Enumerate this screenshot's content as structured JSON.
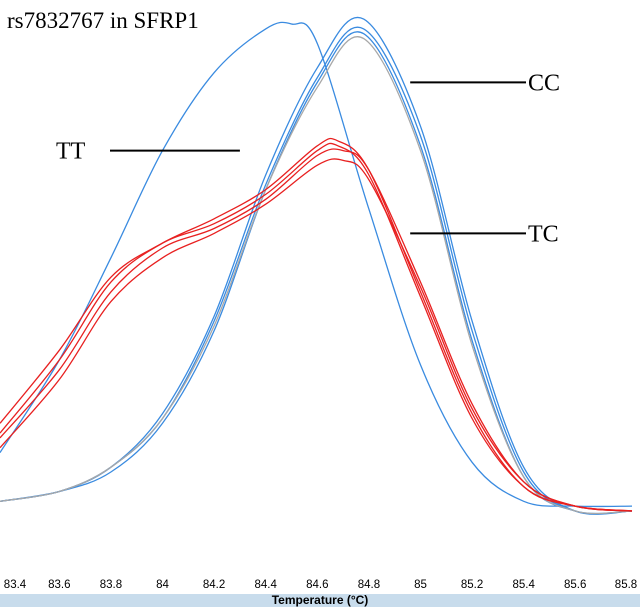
{
  "chart_data": {
    "type": "line",
    "title": "rs7832767 in SFRP1",
    "xlabel": "Temperature (°C)",
    "ylabel": "",
    "xlim": [
      83.37,
      85.82
    ],
    "ylim": [
      0,
      1.0
    ],
    "x_ticks": [
      "83.4",
      "83.6",
      "83.8",
      "84",
      "84.2",
      "84.4",
      "84.6",
      "84.8",
      "85",
      "85.2",
      "85.4",
      "85.6",
      "85.8"
    ],
    "x_tick_values": [
      83.4,
      83.6,
      83.8,
      84.0,
      84.2,
      84.4,
      84.6,
      84.8,
      85.0,
      85.2,
      85.4,
      85.6,
      85.8
    ],
    "grid": false,
    "annotations": [
      {
        "text": "TT",
        "x": 84.3,
        "y": 0.74
      },
      {
        "text": "CC",
        "x": 84.96,
        "y": 0.88
      },
      {
        "text": "TC",
        "x": 84.96,
        "y": 0.57
      }
    ],
    "series": [
      {
        "color": "#3a8be0",
        "x": [
          83.37,
          83.6,
          83.8,
          84.0,
          84.2,
          84.4,
          84.5,
          84.6,
          84.8,
          85.0,
          85.2,
          85.4,
          85.6,
          85.82
        ],
        "y": [
          0.12,
          0.31,
          0.52,
          0.74,
          0.9,
          0.99,
          1.0,
          0.96,
          0.62,
          0.3,
          0.1,
          0.02,
          0.01,
          0.01
        ]
      },
      {
        "color": "#3a8be0",
        "x": [
          83.37,
          83.6,
          83.8,
          84.0,
          84.2,
          84.4,
          84.6,
          84.78,
          85.0,
          85.2,
          85.4,
          85.6,
          85.82
        ],
        "y": [
          0.02,
          0.04,
          0.09,
          0.2,
          0.4,
          0.69,
          0.91,
          1.01,
          0.79,
          0.39,
          0.09,
          0.0,
          0.0
        ]
      },
      {
        "color": "#3a8be0",
        "x": [
          83.37,
          83.6,
          83.8,
          84.0,
          84.2,
          84.4,
          84.6,
          84.78,
          85.0,
          85.2,
          85.4,
          85.6,
          85.82
        ],
        "y": [
          0.02,
          0.04,
          0.09,
          0.19,
          0.39,
          0.67,
          0.89,
          0.99,
          0.77,
          0.37,
          0.08,
          0.0,
          0.0
        ]
      },
      {
        "color": "#3a8be0",
        "x": [
          83.37,
          83.6,
          83.8,
          84.0,
          84.2,
          84.4,
          84.6,
          84.78,
          85.0,
          85.2,
          85.4,
          85.6,
          85.82
        ],
        "y": [
          0.02,
          0.04,
          0.08,
          0.18,
          0.37,
          0.66,
          0.88,
          0.98,
          0.75,
          0.35,
          0.07,
          0.0,
          0.0
        ]
      },
      {
        "color": "#a8a8a8",
        "x": [
          83.37,
          83.6,
          83.8,
          84.0,
          84.2,
          84.4,
          84.6,
          84.78,
          85.0,
          85.2,
          85.4,
          85.6,
          85.82
        ],
        "y": [
          0.02,
          0.04,
          0.09,
          0.19,
          0.38,
          0.66,
          0.87,
          0.97,
          0.74,
          0.34,
          0.07,
          0.0,
          0.0
        ]
      },
      {
        "color": "#e82020",
        "x": [
          83.37,
          83.6,
          83.8,
          84.0,
          84.2,
          84.4,
          84.6,
          84.68,
          84.8,
          85.0,
          85.2,
          85.4,
          85.6,
          85.82
        ],
        "y": [
          0.18,
          0.33,
          0.48,
          0.55,
          0.6,
          0.66,
          0.75,
          0.76,
          0.7,
          0.45,
          0.2,
          0.05,
          0.01,
          0.0
        ]
      },
      {
        "color": "#e82020",
        "x": [
          83.37,
          83.6,
          83.8,
          84.0,
          84.2,
          84.4,
          84.6,
          84.68,
          84.8,
          85.0,
          85.2,
          85.4,
          85.6,
          85.82
        ],
        "y": [
          0.16,
          0.31,
          0.47,
          0.55,
          0.59,
          0.65,
          0.74,
          0.75,
          0.69,
          0.44,
          0.19,
          0.05,
          0.01,
          0.0
        ]
      },
      {
        "color": "#e82020",
        "x": [
          83.37,
          83.6,
          83.8,
          84.0,
          84.2,
          84.4,
          84.6,
          84.7,
          84.8,
          85.0,
          85.2,
          85.4,
          85.6,
          85.82
        ],
        "y": [
          0.15,
          0.29,
          0.45,
          0.54,
          0.58,
          0.64,
          0.73,
          0.74,
          0.7,
          0.47,
          0.22,
          0.06,
          0.01,
          0.0
        ]
      },
      {
        "color": "#e82020",
        "x": [
          83.37,
          83.6,
          83.8,
          84.0,
          84.2,
          84.4,
          84.6,
          84.7,
          84.8,
          85.0,
          85.2,
          85.4,
          85.6,
          85.82
        ],
        "y": [
          0.13,
          0.27,
          0.43,
          0.52,
          0.57,
          0.63,
          0.71,
          0.72,
          0.68,
          0.46,
          0.21,
          0.06,
          0.01,
          0.0
        ]
      }
    ]
  }
}
